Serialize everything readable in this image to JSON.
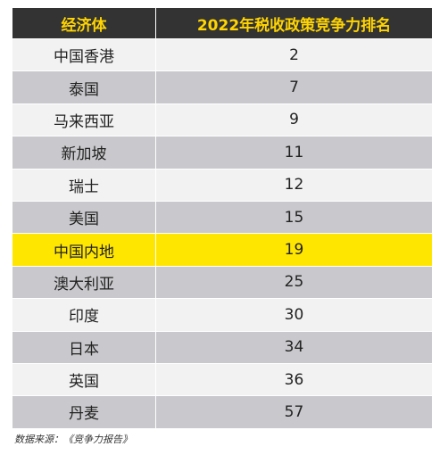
{
  "table": {
    "header": {
      "economy": "经济体",
      "rank": "2022年税收政策竞争力排名"
    },
    "highlight_color": "#ffe600",
    "header_text_color": "#ffd400",
    "header_bg_color": "#333333"
  },
  "chart_data": {
    "type": "table",
    "columns": [
      "经济体",
      "2022年税收政策竞争力排名"
    ],
    "rows": [
      {
        "economy": "中国香港",
        "rank": "2",
        "highlight": false
      },
      {
        "economy": "泰国",
        "rank": "7",
        "highlight": false
      },
      {
        "economy": "马来西亚",
        "rank": "9",
        "highlight": false
      },
      {
        "economy": "新加坡",
        "rank": "11",
        "highlight": false
      },
      {
        "economy": "瑞士",
        "rank": "12",
        "highlight": false
      },
      {
        "economy": "美国",
        "rank": "15",
        "highlight": false
      },
      {
        "economy": "中国内地",
        "rank": "19",
        "highlight": true
      },
      {
        "economy": "澳大利亚",
        "rank": "25",
        "highlight": false
      },
      {
        "economy": "印度",
        "rank": "30",
        "highlight": false
      },
      {
        "economy": "日本",
        "rank": "34",
        "highlight": false
      },
      {
        "economy": "英国",
        "rank": "36",
        "highlight": false
      },
      {
        "economy": "丹麦",
        "rank": "57",
        "highlight": false
      }
    ]
  },
  "source": "数据来源：《竞争力报告》"
}
